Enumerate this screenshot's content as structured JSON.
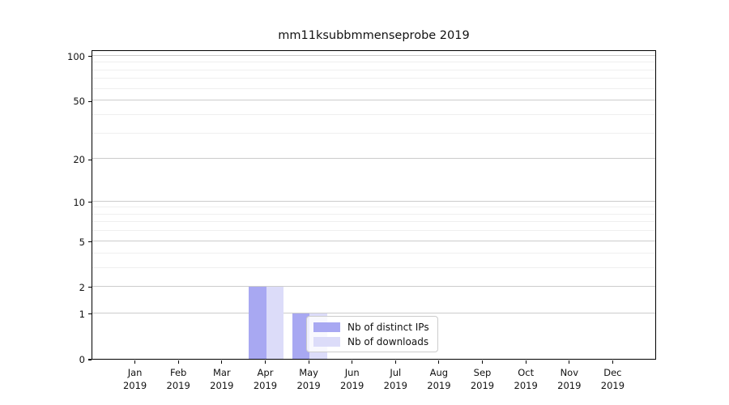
{
  "chart_data": {
    "type": "bar",
    "title": "mm11ksubbmmenseprobe 2019",
    "categories": [
      "Jan",
      "Feb",
      "Mar",
      "Apr",
      "May",
      "Jun",
      "Jul",
      "Aug",
      "Sep",
      "Oct",
      "Nov",
      "Dec"
    ],
    "category_year": "2019",
    "series": [
      {
        "name": "Nb of distinct IPs",
        "color": "#a8a8f2",
        "values": [
          0,
          0,
          0,
          2,
          1,
          0,
          0,
          0,
          0,
          0,
          0,
          0
        ]
      },
      {
        "name": "Nb of downloads",
        "color": "#dcdcf9",
        "values": [
          0,
          0,
          0,
          2,
          1,
          0,
          0,
          0,
          0,
          0,
          0,
          0
        ]
      }
    ],
    "xlabel": "",
    "ylabel": "",
    "yticks": [
      0,
      1,
      2,
      5,
      10,
      20,
      50,
      100
    ],
    "minor_gridlines": [
      3,
      4,
      6,
      7,
      8,
      9,
      30,
      40,
      60,
      70,
      80,
      90
    ],
    "scale": "log1p",
    "ylim": [
      0,
      110
    ],
    "grid": "horizontal",
    "legend_position": "inside-lower-center"
  },
  "colors": {
    "major_grid": "#cccccc",
    "minor_grid": "#efefef",
    "axis": "#000000",
    "text": "#111111"
  }
}
